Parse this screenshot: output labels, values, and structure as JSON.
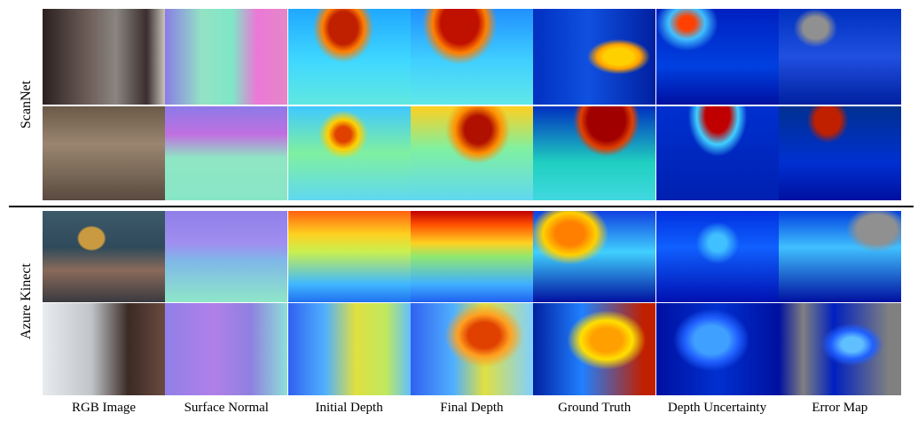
{
  "figure": {
    "row_groups": [
      "ScanNet",
      "Azure Kinect"
    ],
    "columns": [
      "RGB Image",
      "Surface Normal",
      "Initial Depth",
      "Final Depth",
      "Ground Truth",
      "Depth Uncertainty",
      "Error Map"
    ]
  }
}
